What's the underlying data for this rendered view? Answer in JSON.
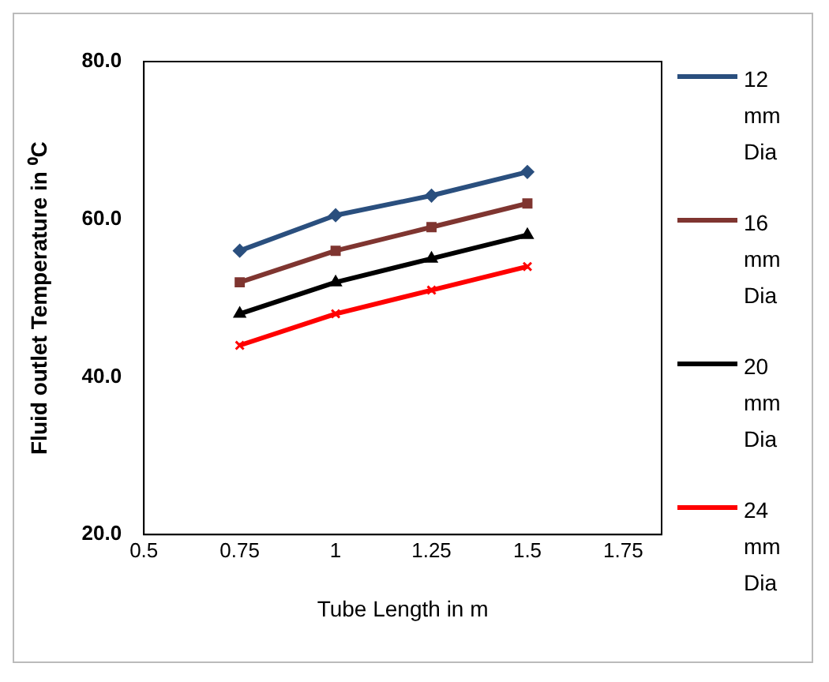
{
  "chart_data": {
    "type": "line",
    "xlabel": "Tube Length in m",
    "ylabel": "Fluid outlet Temperature in ⁰C",
    "x": [
      0.75,
      1,
      1.25,
      1.5
    ],
    "series": [
      {
        "name": "12 mm Dia",
        "color": "#2a4f7e",
        "marker": "diamond",
        "values": [
          56,
          60.5,
          63,
          66
        ]
      },
      {
        "name": "16 mm Dia",
        "color": "#7f3530",
        "marker": "square",
        "values": [
          52,
          56,
          59,
          62
        ]
      },
      {
        "name": "20 mm Dia",
        "color": "#000000",
        "marker": "triangle",
        "values": [
          48,
          52,
          55,
          58
        ]
      },
      {
        "name": "24 mm Dia",
        "color": "#ff0000",
        "marker": "cross",
        "values": [
          44,
          48,
          51,
          54
        ]
      }
    ],
    "xlim": [
      0.5,
      1.85
    ],
    "xticks": [
      0.5,
      0.75,
      1,
      1.25,
      1.5,
      1.75
    ],
    "ylim": [
      20,
      80
    ],
    "yticks": [
      {
        "value": 20,
        "label": "20.0"
      },
      {
        "value": 40,
        "label": "40.0"
      },
      {
        "value": 60,
        "label": "60.0"
      },
      {
        "value": 80,
        "label": "80.0"
      }
    ],
    "grid": false,
    "legend": "right",
    "line_style": "solid"
  }
}
